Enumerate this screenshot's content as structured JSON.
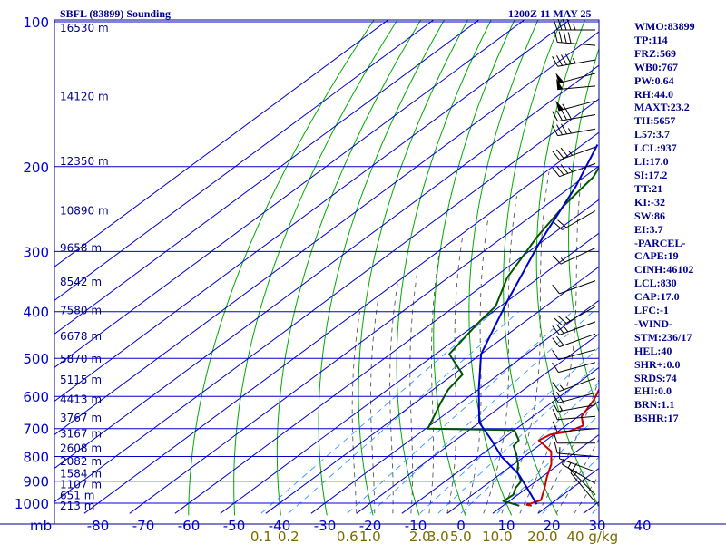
{
  "header": {
    "title": "SBFL (83899) Sounding",
    "time": "1200Z 11 MAY 25"
  },
  "stats": [
    "WMO:83899",
    "TP:114",
    "FRZ:569",
    "WB0:767",
    "PW:0.64",
    "RH:44.0",
    "MAXT:23.2",
    "TH:5657",
    "L57:3.7",
    "LCL:937",
    "LI:17.0",
    "SI:17.2",
    "TT:21",
    "KI:-32",
    "SW:86",
    "EI:3.7",
    "-PARCEL-",
    "CAPE:19",
    "CINH:46102",
    "LCL:830",
    "CAP:17.0",
    "LFC:-1",
    "-WIND-",
    "STM:236/17",
    "HEL:40",
    "SHR+:0.0",
    "SRDS:74",
    "EHI:0.0",
    "BRN:1.1",
    "BSHR:17"
  ],
  "colors": {
    "frame": "#00008b",
    "grid": "#0000cd",
    "dry_adiabat": "#00aa00",
    "moist_adiabat": "#555555",
    "mixing_ratio": "#3399ff",
    "temperature": "#cc0000",
    "dewpoint": "#005500",
    "parcel": "#0000cc",
    "mixing_label": "#7a6a00",
    "wind": "#000000"
  },
  "chart_data": {
    "type": "line",
    "title": "SBFL (83899) Sounding",
    "x_label": "",
    "y_label": "mb",
    "y_unit_label": "mb",
    "pressure_scale": "log",
    "x_ticks": [
      -80,
      -70,
      -60,
      -50,
      -40,
      -30,
      -20,
      -10,
      0,
      10,
      20,
      30,
      40
    ],
    "x_tick_labels": [
      "-80",
      "-70",
      "-60",
      "-50",
      "-40",
      "-30",
      "-20",
      "-10",
      "0",
      "10",
      "20",
      "30",
      "40"
    ],
    "pressure_ticks": [
      100,
      200,
      300,
      400,
      500,
      600,
      700,
      800,
      900,
      1000
    ],
    "pressure_tick_labels": [
      "100",
      "200",
      "300",
      "400",
      "500",
      "600",
      "700",
      "800",
      "900",
      "1000"
    ],
    "height_labels": [
      {
        "p": 103,
        "label": "16530 m"
      },
      {
        "p": 143,
        "label": "14120 m"
      },
      {
        "p": 195,
        "label": "12350 m"
      },
      {
        "p": 247,
        "label": "10890 m"
      },
      {
        "p": 295,
        "label": "9658 m"
      },
      {
        "p": 347,
        "label": "8542 m"
      },
      {
        "p": 398,
        "label": "7580 m"
      },
      {
        "p": 450,
        "label": "6678 m"
      },
      {
        "p": 502,
        "label": "5870 m"
      },
      {
        "p": 555,
        "label": "5115 m"
      },
      {
        "p": 608,
        "label": "4413 m"
      },
      {
        "p": 665,
        "label": "3767 m"
      },
      {
        "p": 718,
        "label": "3167 m"
      },
      {
        "p": 770,
        "label": "2608 m"
      },
      {
        "p": 820,
        "label": "2082 m"
      },
      {
        "p": 868,
        "label": "1584 m"
      },
      {
        "p": 915,
        "label": "1107 m"
      },
      {
        "p": 963,
        "label": "651 m"
      },
      {
        "p": 1012,
        "label": "213 m"
      }
    ],
    "mixing_ratio_labels": [
      "0.1",
      "0.2",
      "0.6",
      "1.0",
      "2.0",
      "3.0",
      "5.0",
      "10.0",
      "20.0",
      "40 g/kg"
    ],
    "mixing_ratio_positions_c": [
      -41,
      -35,
      -22,
      -17,
      -6,
      -2,
      3,
      11,
      21,
      32
    ],
    "series": [
      {
        "key": "temperature",
        "points": [
          [
            -73.1,
            104
          ],
          [
            -73.5,
            110
          ],
          [
            -72.7,
            120
          ],
          [
            -71,
            130
          ],
          [
            -69,
            140
          ],
          [
            -67,
            150
          ],
          [
            -63.7,
            160
          ],
          [
            -60,
            170
          ],
          [
            -59.3,
            180
          ],
          [
            -58,
            200
          ],
          [
            -53,
            220
          ],
          [
            -45.7,
            240
          ],
          [
            -38,
            280
          ],
          [
            -27.7,
            340
          ],
          [
            -21,
            380
          ],
          [
            -14,
            440
          ],
          [
            -9.7,
            480
          ],
          [
            -8.6,
            500
          ],
          [
            -5.5,
            550
          ],
          [
            -1.5,
            610
          ],
          [
            0.7,
            660
          ],
          [
            3.8,
            690
          ],
          [
            2.4,
            710
          ],
          [
            -0.7,
            720
          ],
          [
            -1.6,
            740
          ],
          [
            4.4,
            780
          ],
          [
            8.3,
            830
          ],
          [
            11,
            880
          ],
          [
            13.9,
            930
          ],
          [
            16.7,
            985
          ],
          [
            15,
            1008
          ],
          [
            16.3,
            1012
          ]
        ]
      },
      {
        "key": "dewpoint",
        "points": [
          [
            -80.7,
            141
          ],
          [
            -79.3,
            150
          ],
          [
            -76,
            170
          ],
          [
            -71.5,
            190
          ],
          [
            -68,
            210
          ],
          [
            -66,
            240
          ],
          [
            -62.5,
            280
          ],
          [
            -57,
            340
          ],
          [
            -51,
            390
          ],
          [
            -50,
            420
          ],
          [
            -47,
            490
          ],
          [
            -38,
            540
          ],
          [
            -36.7,
            580
          ],
          [
            -34.3,
            620
          ],
          [
            -29.5,
            700
          ],
          [
            -10,
            705
          ],
          [
            -6,
            740
          ],
          [
            -5.5,
            760
          ],
          [
            -2.5,
            790
          ],
          [
            1,
            830
          ],
          [
            3,
            860
          ],
          [
            6.7,
            900
          ],
          [
            7.5,
            930
          ],
          [
            9,
            960
          ],
          [
            8.7,
            990
          ],
          [
            11,
            1000
          ],
          [
            13.6,
            1012
          ]
        ]
      },
      {
        "key": "parcel",
        "points": [
          [
            -76.7,
            180
          ],
          [
            -69,
            220
          ],
          [
            -60,
            290
          ],
          [
            -50,
            380
          ],
          [
            -40,
            490
          ],
          [
            -30,
            580
          ],
          [
            -20,
            680
          ],
          [
            -12,
            740
          ],
          [
            -5,
            800
          ],
          [
            4,
            870
          ],
          [
            11,
            940
          ],
          [
            17,
            1005
          ]
        ]
      }
    ],
    "wind_barbs": [
      {
        "p": 104,
        "dir": 270,
        "speed": 45
      },
      {
        "p": 112,
        "dir": 275,
        "speed": 40
      },
      {
        "p": 120,
        "dir": 260,
        "speed": 45
      },
      {
        "p": 128,
        "dir": 255,
        "speed": 50
      },
      {
        "p": 136,
        "dir": 265,
        "speed": 50
      },
      {
        "p": 146,
        "dir": 255,
        "speed": 55
      },
      {
        "p": 156,
        "dir": 260,
        "speed": 40
      },
      {
        "p": 167,
        "dir": 260,
        "speed": 35
      },
      {
        "p": 182,
        "dir": 250,
        "speed": 35
      },
      {
        "p": 197,
        "dir": 250,
        "speed": 35
      },
      {
        "p": 247,
        "dir": 240,
        "speed": 20
      },
      {
        "p": 295,
        "dir": 245,
        "speed": 15
      },
      {
        "p": 345,
        "dir": 250,
        "speed": 10
      },
      {
        "p": 390,
        "dir": 240,
        "speed": 25
      },
      {
        "p": 420,
        "dir": 250,
        "speed": 25
      },
      {
        "p": 445,
        "dir": 250,
        "speed": 20
      },
      {
        "p": 480,
        "dir": 255,
        "speed": 10
      },
      {
        "p": 510,
        "dir": 255,
        "speed": 10
      },
      {
        "p": 550,
        "dir": 250,
        "speed": 15
      },
      {
        "p": 590,
        "dir": 255,
        "speed": 20
      },
      {
        "p": 625,
        "dir": 260,
        "speed": 15
      },
      {
        "p": 660,
        "dir": 265,
        "speed": 10
      },
      {
        "p": 700,
        "dir": 265,
        "speed": 10
      },
      {
        "p": 750,
        "dir": 270,
        "speed": 10
      },
      {
        "p": 800,
        "dir": 275,
        "speed": 10
      },
      {
        "p": 860,
        "dir": 290,
        "speed": 10
      },
      {
        "p": 910,
        "dir": 300,
        "speed": 5
      },
      {
        "p": 960,
        "dir": 315,
        "speed": 5
      },
      {
        "p": 995,
        "dir": 320,
        "speed": 15
      }
    ]
  }
}
